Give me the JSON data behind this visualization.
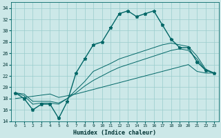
{
  "xlabel": "Humidex (Indice chaleur)",
  "background_color": "#cce8e8",
  "grid_color": "#99cccc",
  "line_color": "#006666",
  "xlim": [
    -0.5,
    23.5
  ],
  "ylim": [
    14,
    35
  ],
  "xticks": [
    0,
    1,
    2,
    3,
    4,
    5,
    6,
    7,
    8,
    9,
    10,
    11,
    12,
    13,
    14,
    15,
    16,
    17,
    18,
    19,
    20,
    21,
    22,
    23
  ],
  "yticks": [
    14,
    16,
    18,
    20,
    22,
    24,
    26,
    28,
    30,
    32,
    34
  ],
  "hours": [
    0,
    1,
    2,
    3,
    4,
    5,
    6,
    7,
    8,
    9,
    10,
    11,
    12,
    13,
    14,
    15,
    16,
    17,
    18,
    19,
    20,
    21,
    22,
    23
  ],
  "curve_main": [
    19.0,
    18.0,
    16.0,
    17.0,
    17.0,
    14.5,
    17.5,
    22.5,
    25.0,
    27.5,
    28.0,
    30.5,
    33.0,
    33.5,
    32.5,
    33.0,
    33.5,
    31.0,
    28.5,
    27.0,
    27.0,
    24.5,
    23.0,
    22.5
  ],
  "curve_lin1": [
    18.0,
    18.2,
    18.4,
    18.6,
    18.8,
    18.2,
    18.5,
    18.8,
    19.2,
    19.6,
    20.0,
    20.4,
    20.8,
    21.2,
    21.6,
    22.0,
    22.4,
    22.8,
    23.2,
    23.6,
    24.0,
    22.8,
    22.5,
    22.5
  ],
  "curve_lin2": [
    19.0,
    18.8,
    17.5,
    17.5,
    17.5,
    17.2,
    18.0,
    19.0,
    20.2,
    21.2,
    22.0,
    22.8,
    23.5,
    24.0,
    24.5,
    25.0,
    25.5,
    26.0,
    26.5,
    26.8,
    26.5,
    25.0,
    23.0,
    22.5
  ],
  "curve_lin3": [
    19.0,
    18.5,
    17.0,
    17.2,
    17.2,
    17.0,
    18.0,
    19.5,
    21.0,
    22.8,
    23.5,
    24.2,
    25.0,
    25.5,
    26.0,
    26.5,
    27.0,
    27.5,
    27.8,
    27.5,
    27.2,
    25.5,
    23.2,
    22.5
  ]
}
